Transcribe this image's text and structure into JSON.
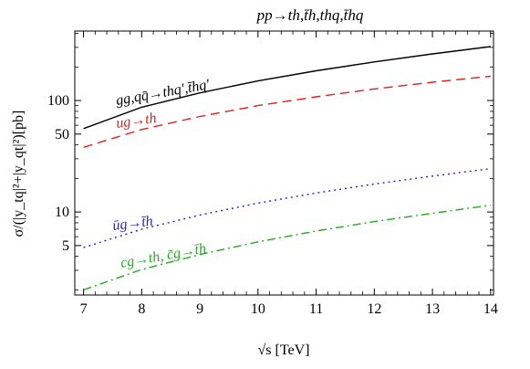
{
  "chart_data": {
    "type": "line",
    "title": "pp→th,t̄h,thq,t̄hq",
    "xlabel": "√s [TeV]",
    "ylabel": "σ/(|y_tq|²+|y_qt|²)[pb]",
    "x_ticks": [
      "7",
      "8",
      "9",
      "10",
      "11",
      "12",
      "13",
      "14"
    ],
    "y_ticks": [
      "5",
      "10",
      "50",
      "100"
    ],
    "xlim": [
      6.85,
      14.05
    ],
    "ylim": [
      1.8,
      420
    ],
    "y_scale": "log",
    "grid": false,
    "colors": {
      "series_gg": "#000000",
      "series_ug_th": "#e41a1c",
      "series_ubar": "#2222dd",
      "series_cg": "#22aa22"
    },
    "x": [
      7,
      8,
      9,
      10,
      11,
      12,
      13,
      14
    ],
    "series": [
      {
        "name": "gg,qq̄→thq′,t̄hq′",
        "values": [
          56,
          87,
          117,
          150,
          185,
          222,
          262,
          305
        ]
      },
      {
        "name": "ug→th",
        "values": [
          38,
          55,
          72,
          90,
          108,
          127,
          146,
          165
        ]
      },
      {
        "name": "ūg→t̄h",
        "values": [
          4.8,
          7.0,
          9.4,
          12.0,
          14.8,
          17.8,
          21.0,
          24.5
        ]
      },
      {
        "name": "cg→th, c̄g→t̄h",
        "values": [
          2.0,
          3.05,
          4.15,
          5.4,
          6.75,
          8.2,
          9.75,
          11.5
        ]
      }
    ]
  }
}
